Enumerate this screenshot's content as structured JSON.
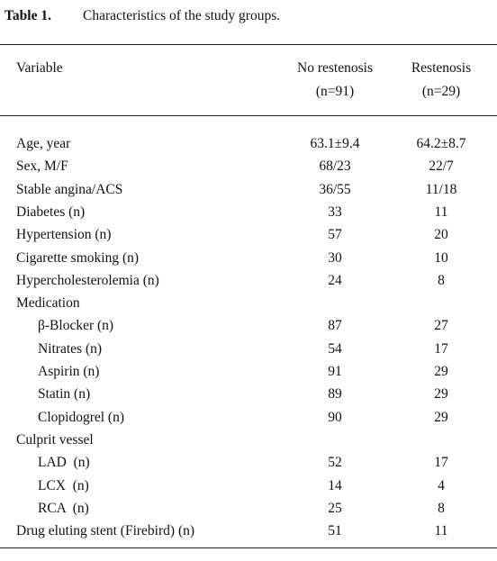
{
  "caption": {
    "number": "Table 1.",
    "title": "Characteristics of the study groups."
  },
  "table": {
    "header": {
      "variable": "Variable",
      "columns": [
        [
          "No restenosis",
          "(n=91)"
        ],
        [
          "Restenosis",
          "(n=29)"
        ]
      ]
    },
    "rows": [
      {
        "label": "Age, year",
        "values": [
          "63.1±9.4",
          "64.2±8.7"
        ]
      },
      {
        "label": "Sex, M/F",
        "values": [
          "68/23",
          "22/7"
        ]
      },
      {
        "label": "Stable angina/ACS",
        "values": [
          "36/55",
          "11/18"
        ]
      },
      {
        "label": "Diabetes (n)",
        "values": [
          "33",
          "11"
        ]
      },
      {
        "label": "Hypertension (n)",
        "values": [
          "57",
          "20"
        ]
      },
      {
        "label": "Cigarette smoking (n)",
        "values": [
          "30",
          "10"
        ]
      },
      {
        "label": "Hypercholesterolemia (n)",
        "values": [
          "24",
          "8"
        ]
      },
      {
        "label": "Medication",
        "rows": [
          {
            "label": "β-Blocker (n)",
            "values": [
              "87",
              "27"
            ]
          },
          {
            "label": "Nitrates (n)",
            "values": [
              "54",
              "17"
            ]
          },
          {
            "label": "Aspirin (n)",
            "values": [
              "91",
              "29"
            ]
          },
          {
            "label": "Statin (n)",
            "values": [
              "89",
              "29"
            ]
          },
          {
            "label": "Clopidogrel (n)",
            "values": [
              "90",
              "29"
            ]
          }
        ]
      },
      {
        "label": "Culprit vessel",
        "rows": [
          {
            "label": "LAD  (n)",
            "values": [
              "52",
              "17"
            ]
          },
          {
            "label": "LCX  (n)",
            "values": [
              "14",
              "4"
            ]
          },
          {
            "label": "RCA  (n)",
            "values": [
              "25",
              "8"
            ]
          }
        ]
      },
      {
        "label": "Drug eluting stent (Firebird) (n)",
        "values": [
          "51",
          "11"
        ]
      }
    ]
  }
}
